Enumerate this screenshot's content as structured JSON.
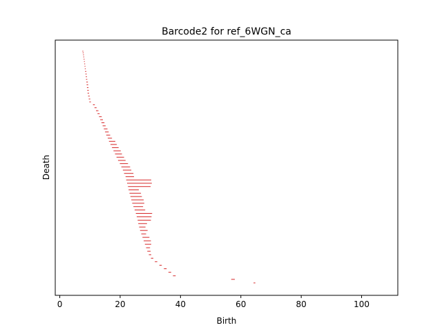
{
  "chart_data": {
    "type": "barcode",
    "title": "Barcode2 for ref_6WGN_ca",
    "xlabel": "Birth",
    "ylabel": "Death",
    "xlim": [
      -1.5,
      112
    ],
    "x_ticks": [
      0,
      20,
      40,
      60,
      80,
      100
    ],
    "x_tick_labels": [
      "0",
      "20",
      "40",
      "60",
      "80",
      "100"
    ],
    "y_ticks_visible": false,
    "grid": false,
    "legend": "none",
    "bar_color": "#d62728",
    "bars": [
      {
        "birth": 7.5,
        "death": 7.8
      },
      {
        "birth": 7.6,
        "death": 7.9
      },
      {
        "birth": 7.7,
        "death": 8.0
      },
      {
        "birth": 7.8,
        "death": 8.1
      },
      {
        "birth": 7.9,
        "death": 8.2
      },
      {
        "birth": 8.0,
        "death": 8.3
      },
      {
        "birth": 8.1,
        "death": 8.4
      },
      {
        "birth": 8.2,
        "death": 8.5
      },
      {
        "birth": 8.3,
        "death": 8.6
      },
      {
        "birth": 8.4,
        "death": 8.8
      },
      {
        "birth": 8.5,
        "death": 8.9
      },
      {
        "birth": 8.6,
        "death": 9.0
      },
      {
        "birth": 8.7,
        "death": 9.1
      },
      {
        "birth": 8.8,
        "death": 9.3
      },
      {
        "birth": 8.9,
        "death": 9.4
      },
      {
        "birth": 9.0,
        "death": 9.5
      },
      {
        "birth": 9.1,
        "death": 9.6
      },
      {
        "birth": 9.2,
        "death": 9.7
      },
      {
        "birth": 9.4,
        "death": 9.9
      },
      {
        "birth": 9.6,
        "death": 10.1
      },
      {
        "birth": 9.8,
        "death": 10.3
      },
      {
        "birth": 11.0,
        "death": 11.6
      },
      {
        "birth": 11.5,
        "death": 12.2
      },
      {
        "birth": 12.0,
        "death": 12.8
      },
      {
        "birth": 12.5,
        "death": 13.2
      },
      {
        "birth": 13.0,
        "death": 13.9
      },
      {
        "birth": 13.4,
        "death": 14.3
      },
      {
        "birth": 13.8,
        "death": 14.8
      },
      {
        "birth": 14.2,
        "death": 15.2
      },
      {
        "birth": 14.6,
        "death": 15.8
      },
      {
        "birth": 15.0,
        "death": 16.2
      },
      {
        "birth": 15.4,
        "death": 16.7
      },
      {
        "birth": 15.9,
        "death": 17.3
      },
      {
        "birth": 16.3,
        "death": 18.4
      },
      {
        "birth": 16.8,
        "death": 18.9
      },
      {
        "birth": 17.3,
        "death": 19.5
      },
      {
        "birth": 17.8,
        "death": 20.2
      },
      {
        "birth": 18.3,
        "death": 20.6
      },
      {
        "birth": 18.8,
        "death": 21.3
      },
      {
        "birth": 19.3,
        "death": 21.8
      },
      {
        "birth": 19.9,
        "death": 22.6
      },
      {
        "birth": 20.4,
        "death": 23.3
      },
      {
        "birth": 20.9,
        "death": 23.7
      },
      {
        "birth": 21.3,
        "death": 24.4
      },
      {
        "birth": 21.8,
        "death": 24.6
      },
      {
        "birth": 22.0,
        "death": 30.3
      },
      {
        "birth": 22.3,
        "death": 30.5
      },
      {
        "birth": 22.6,
        "death": 30.1
      },
      {
        "birth": 22.8,
        "death": 26.2
      },
      {
        "birth": 23.1,
        "death": 26.9
      },
      {
        "birth": 23.4,
        "death": 27.2
      },
      {
        "birth": 23.7,
        "death": 27.8
      },
      {
        "birth": 24.0,
        "death": 28.0
      },
      {
        "birth": 24.4,
        "death": 27.6
      },
      {
        "birth": 24.8,
        "death": 28.3
      },
      {
        "birth": 25.2,
        "death": 30.6
      },
      {
        "birth": 25.5,
        "death": 30.4
      },
      {
        "birth": 25.8,
        "death": 30.2
      },
      {
        "birth": 26.0,
        "death": 28.9
      },
      {
        "birth": 26.3,
        "death": 28.4
      },
      {
        "birth": 26.6,
        "death": 29.1
      },
      {
        "birth": 27.0,
        "death": 28.6
      },
      {
        "birth": 27.4,
        "death": 29.7
      },
      {
        "birth": 27.8,
        "death": 30.2
      },
      {
        "birth": 28.2,
        "death": 30.3
      },
      {
        "birth": 28.6,
        "death": 29.9
      },
      {
        "birth": 29.0,
        "death": 30.1
      },
      {
        "birth": 29.5,
        "death": 30.3
      },
      {
        "birth": 30.2,
        "death": 31.0
      },
      {
        "birth": 31.5,
        "death": 32.3
      },
      {
        "birth": 33.0,
        "death": 33.8
      },
      {
        "birth": 34.5,
        "death": 35.4
      },
      {
        "birth": 36.0,
        "death": 36.9
      },
      {
        "birth": 37.5,
        "death": 38.4
      },
      {
        "birth": 56.8,
        "death": 58.0
      },
      {
        "birth": 64.2,
        "death": 64.8
      }
    ]
  }
}
